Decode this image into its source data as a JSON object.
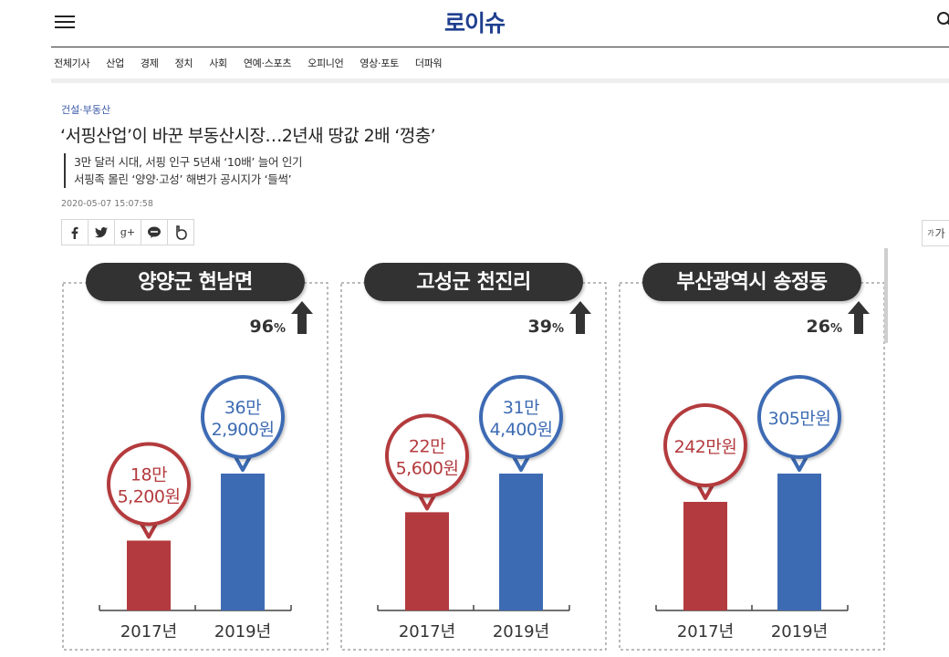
{
  "site": {
    "logo": "로이슈"
  },
  "nav": [
    "전체기사",
    "산업",
    "경제",
    "정치",
    "사회",
    "연예·스포츠",
    "오피니언",
    "영상·포토",
    "더파워"
  ],
  "article": {
    "category": "건설·부동산",
    "headline": "‘서핑산업’이 바꾼 부동산시장…2년새 땅값 2배 ‘껑충’",
    "subheads": [
      "3만 달러 시대, 서핑 인구 5년새 ‘10배’ 늘어 인기",
      "서핑족 몰린 ‘양양·고성’ 해변가 공시지가 ‘들썩’"
    ],
    "date": "2020-05-07 15:07:58"
  },
  "share": {
    "buttons": [
      "facebook-icon",
      "twitter-icon",
      "google-plus-icon",
      "kakaotalk-icon",
      "band-icon"
    ],
    "google_plus_label": "g+"
  },
  "font_size_button": {
    "small": "가",
    "large": "가"
  },
  "colors": {
    "brand": "#1f3f8f",
    "bar_2017": "#b33a3e",
    "bar_2019": "#3d6bb3",
    "title_pill": "#333333"
  },
  "chart_data": [
    {
      "type": "bar",
      "title": "양양군 현남면",
      "categories": [
        "2017년",
        "2019년"
      ],
      "values": [
        185200,
        362900
      ],
      "value_labels": [
        [
          "18만",
          "5,200원"
        ],
        [
          "36만",
          "2,900원"
        ]
      ],
      "change": "96",
      "change_unit": "%"
    },
    {
      "type": "bar",
      "title": "고성군 천진리",
      "categories": [
        "2017년",
        "2019년"
      ],
      "values": [
        225600,
        314400
      ],
      "value_labels": [
        [
          "22만",
          "5,600원"
        ],
        [
          "31만",
          "4,400원"
        ]
      ],
      "change": "39",
      "change_unit": "%"
    },
    {
      "type": "bar",
      "title": "부산광역시 송정동",
      "categories": [
        "2017년",
        "2019년"
      ],
      "values": [
        2420000,
        3050000
      ],
      "value_labels": [
        [
          "242만원"
        ],
        [
          "305만원"
        ]
      ],
      "change": "26",
      "change_unit": "%"
    }
  ]
}
